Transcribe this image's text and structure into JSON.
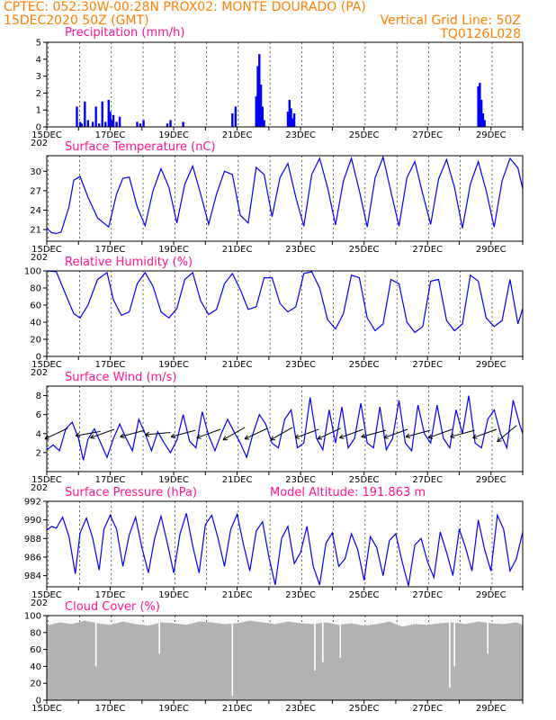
{
  "header": {
    "line1_left": "CPTEC:  052:30W-00:28N  PROX02: MONTE DOURADO (PA)",
    "line2_left": "15DEC2020 50Z (GMT)",
    "line2_right": "Vertical Grid Line: 50Z",
    "line3_right": "TQ0126L028"
  },
  "colors": {
    "header": "#ff7f00",
    "title": "#ff1493",
    "series": "#0000ff",
    "cloud": "#b3b3b3"
  },
  "x_ticks": [
    "15DEC",
    "17DEC",
    "19DEC",
    "21DEC",
    "23DEC",
    "25DEC",
    "27DEC",
    "29DEC"
  ],
  "x_tick_fragment": "202",
  "chart_data": [
    {
      "id": "precip",
      "type": "bar",
      "title": "Precipitation (mm/h)",
      "yticks": [
        0,
        1,
        2,
        3,
        4,
        5
      ],
      "ylim": [
        0,
        5
      ],
      "x_unit": "days since 15DEC 00Z",
      "xlim": [
        0,
        15
      ],
      "x": [
        0.95,
        1.05,
        1.1,
        1.2,
        1.3,
        1.45,
        1.55,
        1.65,
        1.75,
        1.85,
        1.95,
        2.0,
        2.05,
        2.1,
        2.2,
        2.3,
        2.85,
        2.95,
        3.05,
        3.8,
        3.9,
        4.3,
        5.85,
        5.95,
        6.6,
        6.65,
        6.7,
        6.75,
        6.8,
        6.85,
        7.6,
        7.65,
        7.7,
        7.75,
        7.8,
        13.6,
        13.65,
        13.7,
        13.75,
        13.8
      ],
      "values": [
        1.2,
        0.3,
        0.2,
        1.5,
        0.4,
        0.3,
        1.2,
        0.2,
        1.5,
        0.3,
        1.6,
        0.9,
        0.4,
        0.7,
        0.3,
        0.6,
        0.3,
        0.2,
        0.4,
        0.2,
        0.4,
        0.3,
        0.8,
        1.2,
        1.8,
        3.6,
        4.3,
        2.5,
        1.2,
        0.4,
        0.9,
        1.6,
        1.1,
        0.5,
        0.8,
        2.4,
        2.6,
        1.6,
        0.8,
        0.4
      ]
    },
    {
      "id": "temp",
      "type": "line",
      "title": "Surface Temperature (nC)",
      "yticks": [
        21,
        24,
        27,
        30
      ],
      "ylim": [
        19.2,
        32.4
      ],
      "x_unit": "days since 15DEC 00Z",
      "xlim": [
        0,
        15
      ],
      "x": [
        0.0,
        0.15,
        0.3,
        0.45,
        0.7,
        0.85,
        1.05,
        1.3,
        1.6,
        1.95,
        2.2,
        2.4,
        2.6,
        2.85,
        3.1,
        3.35,
        3.6,
        3.85,
        4.1,
        4.35,
        4.6,
        4.85,
        5.1,
        5.35,
        5.6,
        5.85,
        6.1,
        6.35,
        6.6,
        6.85,
        7.1,
        7.35,
        7.6,
        7.85,
        8.1,
        8.35,
        8.6,
        8.85,
        9.1,
        9.35,
        9.6,
        9.85,
        10.1,
        10.35,
        10.6,
        10.85,
        11.1,
        11.35,
        11.6,
        11.85,
        12.1,
        12.35,
        12.6,
        12.85,
        13.1,
        13.35,
        13.6,
        13.85,
        14.1,
        14.35,
        14.6,
        14.85,
        15.0
      ],
      "values": [
        21.2,
        20.5,
        20.4,
        20.6,
        24.5,
        28.6,
        29.2,
        26.0,
        22.8,
        21.4,
        26.5,
        28.9,
        29.1,
        24.5,
        21.6,
        27.0,
        30.4,
        27.5,
        22.0,
        28.0,
        30.8,
        26.5,
        21.8,
        26.5,
        30.0,
        29.5,
        23.2,
        22.0,
        30.6,
        29.5,
        23.0,
        29.0,
        31.2,
        26.0,
        21.5,
        29.5,
        32.0,
        27.5,
        21.7,
        28.5,
        32.0,
        27.0,
        21.4,
        29.0,
        32.2,
        26.8,
        21.5,
        29.0,
        31.5,
        26.5,
        21.8,
        28.8,
        31.8,
        27.5,
        21.2,
        28.0,
        31.5,
        27.0,
        21.4,
        28.5,
        32.0,
        30.5,
        27.3
      ]
    },
    {
      "id": "rh",
      "type": "line",
      "title": "Relative Humidity (%)",
      "yticks": [
        0,
        20,
        40,
        60,
        80,
        100
      ],
      "ylim": [
        0,
        100
      ],
      "x_unit": "days since 15DEC 00Z",
      "xlim": [
        0,
        15
      ],
      "x": [
        0.0,
        0.3,
        0.6,
        0.85,
        1.05,
        1.3,
        1.6,
        1.9,
        2.1,
        2.35,
        2.6,
        2.85,
        3.1,
        3.35,
        3.6,
        3.85,
        4.1,
        4.35,
        4.6,
        4.85,
        5.1,
        5.35,
        5.6,
        5.85,
        6.1,
        6.35,
        6.6,
        6.85,
        7.1,
        7.35,
        7.6,
        7.85,
        8.1,
        8.35,
        8.6,
        8.85,
        9.1,
        9.35,
        9.6,
        9.85,
        10.1,
        10.35,
        10.6,
        10.85,
        11.1,
        11.35,
        11.6,
        11.85,
        12.1,
        12.35,
        12.6,
        12.85,
        13.1,
        13.35,
        13.6,
        13.85,
        14.1,
        14.35,
        14.6,
        14.85,
        15.0
      ],
      "values": [
        100,
        99,
        72,
        50,
        45,
        60,
        90,
        98,
        66,
        48,
        52,
        85,
        98,
        82,
        52,
        45,
        56,
        90,
        98,
        65,
        49,
        55,
        85,
        97,
        78,
        55,
        58,
        92,
        92,
        62,
        52,
        58,
        97,
        99,
        80,
        43,
        32,
        50,
        95,
        92,
        45,
        30,
        38,
        90,
        85,
        40,
        28,
        35,
        88,
        90,
        42,
        30,
        38,
        95,
        88,
        45,
        35,
        42,
        90,
        38,
        56
      ]
    },
    {
      "id": "wind",
      "type": "line",
      "title": "Surface Wind (m/s)",
      "yticks": [
        2,
        4,
        6,
        8
      ],
      "ylim": [
        0,
        9
      ],
      "x_unit": "days since 15DEC 00Z",
      "xlim": [
        0,
        15
      ],
      "x": [
        0.0,
        0.2,
        0.4,
        0.6,
        0.8,
        1.0,
        1.15,
        1.3,
        1.5,
        1.7,
        1.9,
        2.1,
        2.3,
        2.5,
        2.7,
        2.9,
        3.1,
        3.3,
        3.5,
        3.7,
        3.9,
        4.1,
        4.3,
        4.5,
        4.7,
        4.9,
        5.1,
        5.3,
        5.5,
        5.7,
        5.9,
        6.1,
        6.3,
        6.5,
        6.7,
        6.9,
        7.1,
        7.3,
        7.5,
        7.7,
        7.9,
        8.1,
        8.3,
        8.5,
        8.7,
        8.9,
        9.1,
        9.3,
        9.5,
        9.7,
        9.9,
        10.1,
        10.3,
        10.5,
        10.7,
        10.9,
        11.1,
        11.3,
        11.5,
        11.7,
        11.9,
        12.1,
        12.3,
        12.5,
        12.7,
        12.9,
        13.1,
        13.3,
        13.5,
        13.7,
        13.9,
        14.1,
        14.3,
        14.5,
        14.7,
        14.9,
        15.0
      ],
      "values": [
        2.3,
        2.8,
        2.2,
        4.5,
        5.2,
        3.5,
        1.2,
        3.4,
        4.5,
        3.0,
        1.5,
        3.5,
        5.0,
        3.5,
        2.2,
        5.5,
        4.0,
        2.2,
        4.2,
        3.0,
        2.0,
        3.3,
        6.0,
        3.2,
        2.5,
        6.3,
        3.8,
        2.2,
        4.0,
        5.5,
        4.2,
        3.0,
        1.5,
        4.0,
        6.0,
        5.0,
        3.0,
        2.5,
        5.5,
        6.5,
        2.5,
        3.0,
        7.8,
        3.5,
        2.3,
        6.5,
        3.0,
        6.8,
        2.5,
        3.5,
        7.2,
        3.0,
        2.5,
        6.8,
        2.3,
        3.5,
        7.5,
        3.0,
        2.2,
        7.0,
        4.0,
        3.0,
        7.0,
        3.5,
        2.5,
        6.5,
        4.0,
        8.0,
        3.0,
        2.5,
        5.5,
        6.5,
        4.0,
        2.5,
        7.5,
        5.0,
        4.0
      ],
      "vectors": {
        "x": [
          0.3,
          1.3,
          1.75,
          2.7,
          3.5,
          4.3,
          5.1,
          5.9,
          6.6,
          7.4,
          8.2,
          8.9,
          9.6,
          10.3,
          11.0,
          11.7,
          12.4,
          13.1,
          13.8,
          14.5
        ],
        "dir_deg": [
          205,
          190,
          200,
          195,
          185,
          195,
          200,
          210,
          205,
          210,
          200,
          205,
          200,
          195,
          200,
          195,
          200,
          195,
          200,
          220
        ]
      }
    },
    {
      "id": "pres",
      "type": "line",
      "title": "Surface Pressure (hPa)",
      "annotation": "Model Altitude: 191.863 m",
      "yticks": [
        984,
        986,
        988,
        990,
        992
      ],
      "ylim": [
        982.8,
        992.0
      ],
      "x_unit": "days since 15DEC 00Z",
      "xlim": [
        0,
        15
      ],
      "x": [
        0.0,
        0.15,
        0.3,
        0.5,
        0.7,
        0.9,
        1.05,
        1.25,
        1.45,
        1.65,
        1.8,
        2.0,
        2.2,
        2.4,
        2.6,
        2.8,
        3.0,
        3.2,
        3.4,
        3.6,
        3.8,
        4.0,
        4.2,
        4.4,
        4.6,
        4.8,
        5.0,
        5.2,
        5.4,
        5.6,
        5.8,
        6.0,
        6.2,
        6.4,
        6.6,
        6.8,
        7.0,
        7.2,
        7.4,
        7.6,
        7.8,
        8.0,
        8.2,
        8.4,
        8.6,
        8.8,
        9.0,
        9.2,
        9.4,
        9.6,
        9.8,
        10.0,
        10.2,
        10.4,
        10.6,
        10.8,
        11.0,
        11.2,
        11.4,
        11.6,
        11.8,
        12.0,
        12.2,
        12.4,
        12.6,
        12.8,
        13.0,
        13.2,
        13.4,
        13.6,
        13.8,
        14.0,
        14.2,
        14.4,
        14.6,
        14.8,
        15.0
      ],
      "values": [
        988.9,
        989.3,
        989.1,
        990.3,
        988.2,
        984.2,
        988.6,
        990.2,
        988.0,
        984.6,
        989.0,
        990.5,
        989.0,
        985.0,
        988.4,
        990.3,
        987.0,
        984.3,
        988.0,
        990.4,
        987.5,
        984.3,
        988.5,
        990.7,
        987.2,
        984.3,
        989.5,
        990.5,
        988.0,
        985.0,
        989.0,
        990.6,
        987.3,
        984.5,
        988.8,
        989.8,
        986.0,
        983.0,
        988.0,
        989.3,
        985.3,
        986.5,
        989.3,
        985.0,
        983.0,
        987.5,
        988.6,
        985.0,
        985.8,
        988.5,
        986.8,
        983.5,
        988.2,
        987.0,
        984.0,
        987.8,
        988.5,
        985.5,
        982.9,
        987.3,
        988.0,
        985.5,
        983.8,
        988.7,
        986.5,
        984.0,
        989.0,
        987.0,
        984.5,
        990.0,
        986.8,
        984.5,
        990.5,
        989.0,
        984.5,
        985.8,
        988.7
      ]
    },
    {
      "id": "cloud",
      "type": "area",
      "title": "Cloud Cover (%)",
      "yticks": [
        0,
        20,
        40,
        60,
        80,
        100
      ],
      "ylim": [
        0,
        100
      ],
      "x_unit": "days since 15DEC 00Z",
      "xlim": [
        0,
        15
      ],
      "x": [
        0.0,
        0.4,
        0.8,
        1.2,
        1.6,
        2.0,
        2.4,
        2.8,
        3.2,
        3.6,
        4.0,
        4.4,
        4.8,
        5.2,
        5.6,
        6.0,
        6.4,
        6.8,
        7.2,
        7.6,
        8.0,
        8.4,
        8.8,
        9.2,
        9.6,
        10.0,
        10.4,
        10.8,
        11.2,
        11.6,
        12.0,
        12.4,
        12.8,
        13.2,
        13.6,
        14.0,
        14.4,
        14.8,
        15.0
      ],
      "values": [
        88,
        92,
        90,
        94,
        91,
        89,
        93,
        90,
        88,
        92,
        91,
        89,
        93,
        92,
        90,
        91,
        94,
        92,
        90,
        93,
        91,
        90,
        92,
        89,
        91,
        88,
        90,
        93,
        87,
        90,
        89,
        91,
        92,
        90,
        93,
        91,
        90,
        92,
        89
      ],
      "dips": {
        "x": [
          1.55,
          3.55,
          5.85,
          8.45,
          8.7,
          9.25,
          12.7,
          12.85,
          13.9
        ],
        "values": [
          40,
          55,
          5,
          35,
          45,
          50,
          15,
          40,
          55
        ]
      }
    }
  ]
}
